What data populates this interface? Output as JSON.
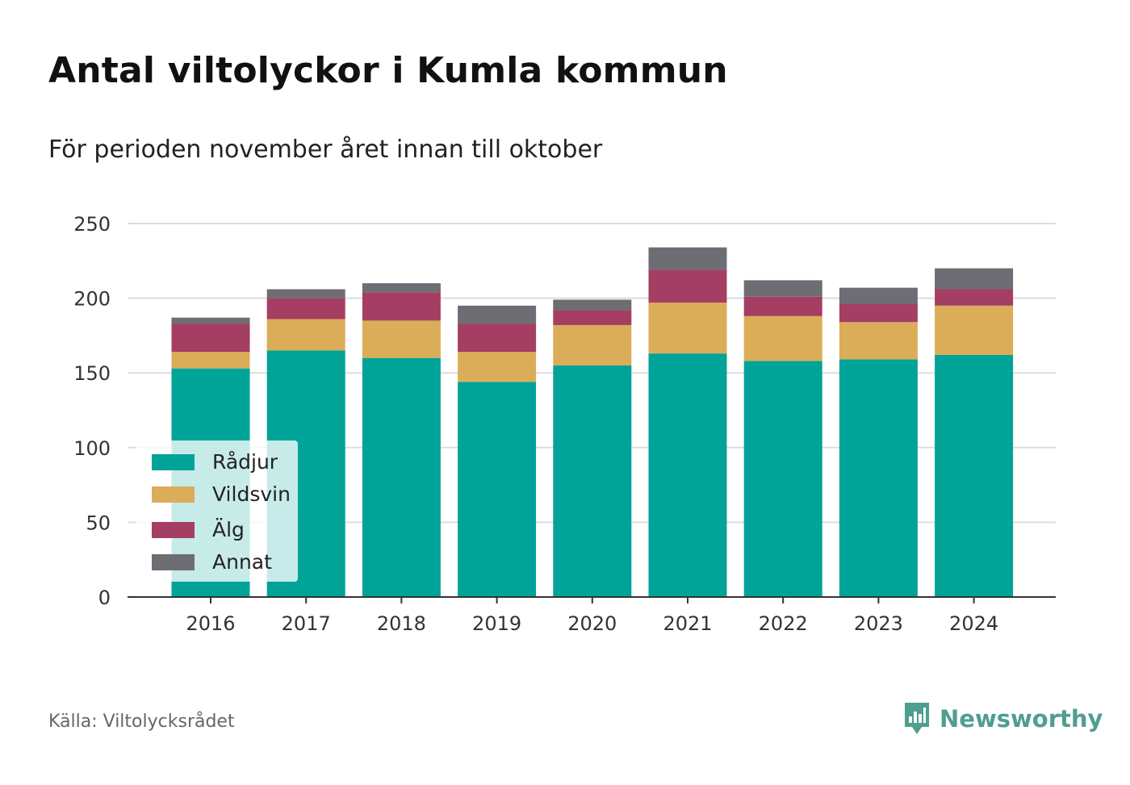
{
  "title": "Antal viltolyckor i Kumla kommun",
  "subtitle": "För perioden november året innan till oktober",
  "source": "Källa: Viltolycksrådet",
  "brand": "Newsworthy",
  "colors": {
    "radjur": "#00a398",
    "vildsvin": "#dbad58",
    "alg": "#a53e63",
    "annat": "#6e6d74",
    "grid": "#dddddd",
    "axis": "#333333",
    "brand": "#4f9e8f"
  },
  "chart_data": {
    "type": "bar",
    "stacked": true,
    "categories": [
      "2016",
      "2017",
      "2018",
      "2019",
      "2020",
      "2021",
      "2022",
      "2023",
      "2024"
    ],
    "series": [
      {
        "name": "Rådjur",
        "color": "#00a398",
        "values": [
          153,
          165,
          160,
          144,
          155,
          163,
          158,
          159,
          162
        ]
      },
      {
        "name": "Vildsvin",
        "color": "#dbad58",
        "values": [
          11,
          21,
          25,
          20,
          27,
          34,
          30,
          25,
          33
        ]
      },
      {
        "name": "Älg",
        "color": "#a53e63",
        "values": [
          19,
          14,
          19,
          19,
          10,
          22,
          13,
          12,
          11
        ]
      },
      {
        "name": "Annat",
        "color": "#6e6d74",
        "values": [
          4,
          6,
          6,
          12,
          7,
          15,
          11,
          11,
          14
        ]
      }
    ],
    "ylim": [
      0,
      250
    ],
    "yticks": [
      0,
      50,
      100,
      150,
      200,
      250
    ],
    "grid": true,
    "legend_position": "bottom-left"
  }
}
